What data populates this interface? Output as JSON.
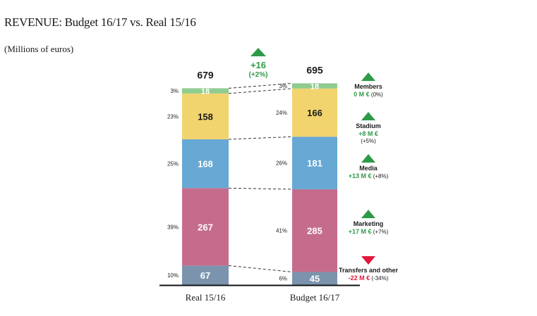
{
  "title": "REVENUE: Budget 16/17 vs. Real 15/16",
  "subtitle": "(Millions of euros)",
  "chart_data": {
    "type": "bar",
    "stacked": true,
    "title": "REVENUE: Budget 16/17 vs. Real 15/16",
    "subtitle": "(Millions of euros)",
    "units": "Millions of euros",
    "categories": [
      "Real 15/16",
      "Budget 16/17"
    ],
    "totals": [
      679,
      695
    ],
    "total_change": {
      "value": "+16",
      "percent": "(+2%)",
      "direction": "up"
    },
    "series": [
      {
        "name": "Transfers and other",
        "values": [
          67,
          45
        ],
        "shares": [
          "10%",
          "6%"
        ],
        "color": "#7b93ad",
        "label_color": "#ffffff",
        "change": {
          "value": "-22 M €",
          "percent": "(-34%)",
          "direction": "down"
        }
      },
      {
        "name": "Marketing",
        "values": [
          267,
          285
        ],
        "shares": [
          "39%",
          "41%"
        ],
        "color": "#c56c8c",
        "label_color": "#ffffff",
        "change": {
          "value": "+17 M €",
          "percent": "(+7%)",
          "direction": "up"
        }
      },
      {
        "name": "Media",
        "values": [
          168,
          181
        ],
        "shares": [
          "25%",
          "26%"
        ],
        "color": "#67a8d4",
        "label_color": "#ffffff",
        "change": {
          "value": "+13 M €",
          "percent": "(+8%)",
          "direction": "up"
        }
      },
      {
        "name": "Stadium",
        "values": [
          158,
          166
        ],
        "shares": [
          "23%",
          "24%"
        ],
        "color": "#f2d46e",
        "label_color": "#1a1a1a",
        "change": {
          "value": "+8 M €",
          "percent": "(+5%)",
          "direction": "up"
        }
      },
      {
        "name": "Members",
        "values": [
          18,
          18
        ],
        "shares": [
          "3%",
          "3%"
        ],
        "color": "#8fcb8f",
        "label_color": "#ffffff",
        "change": {
          "value": "0 M €",
          "percent": "(0%)",
          "direction": "up"
        }
      }
    ],
    "colors": {
      "up": "#2e9a47",
      "down": "#e3183a",
      "axis": "#111111",
      "connector": "#333333"
    },
    "xlabel": "",
    "ylabel": "",
    "grid": false,
    "legend": "right"
  }
}
